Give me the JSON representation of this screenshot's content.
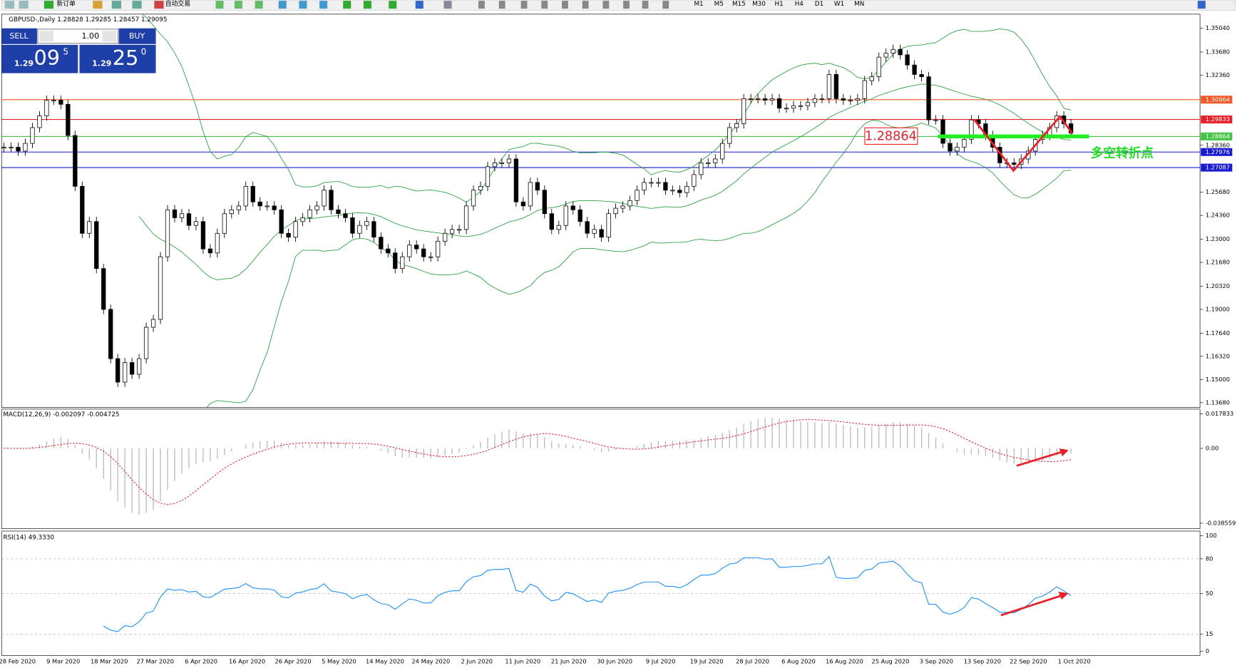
{
  "toolbar": {
    "new_order": "新订单",
    "auto_trading": "自动交易",
    "timeframes": [
      "M1",
      "M5",
      "M15",
      "M30",
      "H1",
      "H4",
      "D1",
      "W1",
      "MN"
    ]
  },
  "order_panel": {
    "sell": "SELL",
    "buy": "BUY",
    "lots": "1.00",
    "sell_big": "1.29",
    "sell_pips": "09",
    "sell_frac": "5",
    "buy_big": "1.29",
    "buy_pips": "25",
    "buy_frac": "0"
  },
  "chart": {
    "header": "GBPUSD-,Daily  1.28828 1.29285 1.28457 1.29095",
    "ylim": [
      1.134,
      1.3584
    ],
    "price_ticks": [
      {
        "value": 1.3504,
        "label": "1.35040"
      },
      {
        "value": 1.3368,
        "label": "1.33680"
      },
      {
        "value": 1.3236,
        "label": "1.32360"
      },
      {
        "value": 1.2836,
        "label": "1.28360"
      },
      {
        "value": 1.2568,
        "label": "1.25680"
      },
      {
        "value": 1.2436,
        "label": "1.24360"
      },
      {
        "value": 1.23,
        "label": "1.23000"
      },
      {
        "value": 1.2168,
        "label": "1.21680"
      },
      {
        "value": 1.2032,
        "label": "1.20320"
      },
      {
        "value": 1.19,
        "label": "1.19000"
      },
      {
        "value": 1.1764,
        "label": "1.17640"
      },
      {
        "value": 1.1632,
        "label": "1.16320"
      },
      {
        "value": 1.15,
        "label": "1.15000"
      },
      {
        "value": 1.1368,
        "label": "1.13680"
      }
    ],
    "levels": [
      {
        "value": 1.30964,
        "label": "1.30964",
        "color": "#f05a28"
      },
      {
        "value": 1.29833,
        "label": "1.29833",
        "color": "#e8202a"
      },
      {
        "value": 1.28864,
        "label": "1.28864",
        "color": "#44c444"
      },
      {
        "value": 1.27976,
        "label": "1.27976",
        "color": "#1a1ad0"
      },
      {
        "value": 1.27087,
        "label": "1.27087",
        "color": "#1a1ad0"
      }
    ],
    "annotation_price": "1.28864",
    "annotation_text": "多空转折点",
    "closes": [
      1.2825,
      1.2825,
      1.2803,
      1.2847,
      1.2937,
      1.3004,
      1.3093,
      1.3093,
      1.307,
      1.2892,
      1.2602,
      1.2334,
      1.2401,
      1.2133,
      1.19,
      1.1619,
      1.1485,
      1.1597,
      1.153,
      1.1619,
      1.1798,
      1.1843,
      1.22,
      1.2468,
      1.2423,
      1.2446,
      1.2379,
      1.2401,
      1.2245,
      1.2222,
      1.2334,
      1.2446,
      1.2468,
      1.249,
      1.2602,
      1.2513,
      1.249,
      1.249,
      1.2468,
      1.2334,
      1.2312,
      1.2401,
      1.2423,
      1.2468,
      1.249,
      1.258,
      1.2468,
      1.2446,
      1.2423,
      1.2334,
      1.2379,
      1.2401,
      1.2312,
      1.2245,
      1.2222,
      1.2133,
      1.22,
      1.2267,
      1.2245,
      1.22,
      1.22,
      1.2289,
      1.2334,
      1.2356,
      1.2356,
      1.249,
      1.258,
      1.2602,
      1.2714,
      1.2736,
      1.2736,
      1.2758,
      1.2513,
      1.249,
      1.2624,
      1.258,
      1.2446,
      1.2356,
      1.2379,
      1.249,
      1.2468,
      1.2401,
      1.2334,
      1.2356,
      1.2312,
      1.2446,
      1.2477,
      1.249,
      1.2521,
      1.258,
      1.2624,
      1.2624,
      1.2624,
      1.258,
      1.258,
      1.2566,
      1.2602,
      1.2669,
      1.2736,
      1.2736,
      1.2758,
      1.2847,
      1.2937,
      1.2959,
      1.3102,
      1.3102,
      1.3102,
      1.3093,
      1.3102,
      1.3048,
      1.3048,
      1.3062,
      1.3062,
      1.308,
      1.3102,
      1.3102,
      1.324,
      1.3102,
      1.3093,
      1.3093,
      1.3102,
      1.3205,
      1.3227,
      1.3339,
      1.3361,
      1.3383,
      1.3352,
      1.3294,
      1.324,
      1.3227,
      1.2981,
      1.2981,
      1.2847,
      1.2803,
      1.2825,
      1.287,
      1.2981,
      1.2959,
      1.2892,
      1.2825,
      1.2736,
      1.2736,
      1.2727,
      1.2758,
      1.2803,
      1.287,
      1.2892,
      1.2937,
      1.3004,
      1.2959,
      1.2906
    ],
    "dates": [
      "28 Feb 2020",
      "9 Mar 2020",
      "18 Mar 2020",
      "27 Mar 2020",
      "6 Apr 2020",
      "16 Apr 2020",
      "26 Apr 2020",
      "5 May 2020",
      "14 May 2020",
      "24 May 2020",
      "2 Jun 2020",
      "11 Jun 2020",
      "21 Jun 2020",
      "30 Jun 2020",
      "9 Jul 2020",
      "19 Jul 2020",
      "28 Jul 2020",
      "6 Aug 2020",
      "16 Aug 2020",
      "25 Aug 2020",
      "3 Sep 2020",
      "13 Sep 2020",
      "22 Sep 2020",
      "1 Oct 2020"
    ]
  },
  "macd": {
    "header": "MACD(12,26,9) -0.002097 -0.004725",
    "ylim": [
      -0.0414,
      0.0202
    ],
    "ticks": [
      {
        "value": 0.017833,
        "label": "0.017833"
      },
      {
        "value": 0,
        "label": "0.00"
      },
      {
        "value": -0.038559,
        "label": "-0.038559"
      }
    ]
  },
  "rsi": {
    "header": "RSI(14) 49.3330",
    "ylim": [
      -3.5,
      104
    ],
    "ticks": [
      100,
      80,
      50,
      15,
      0
    ],
    "levels": [
      80,
      50,
      15
    ]
  }
}
